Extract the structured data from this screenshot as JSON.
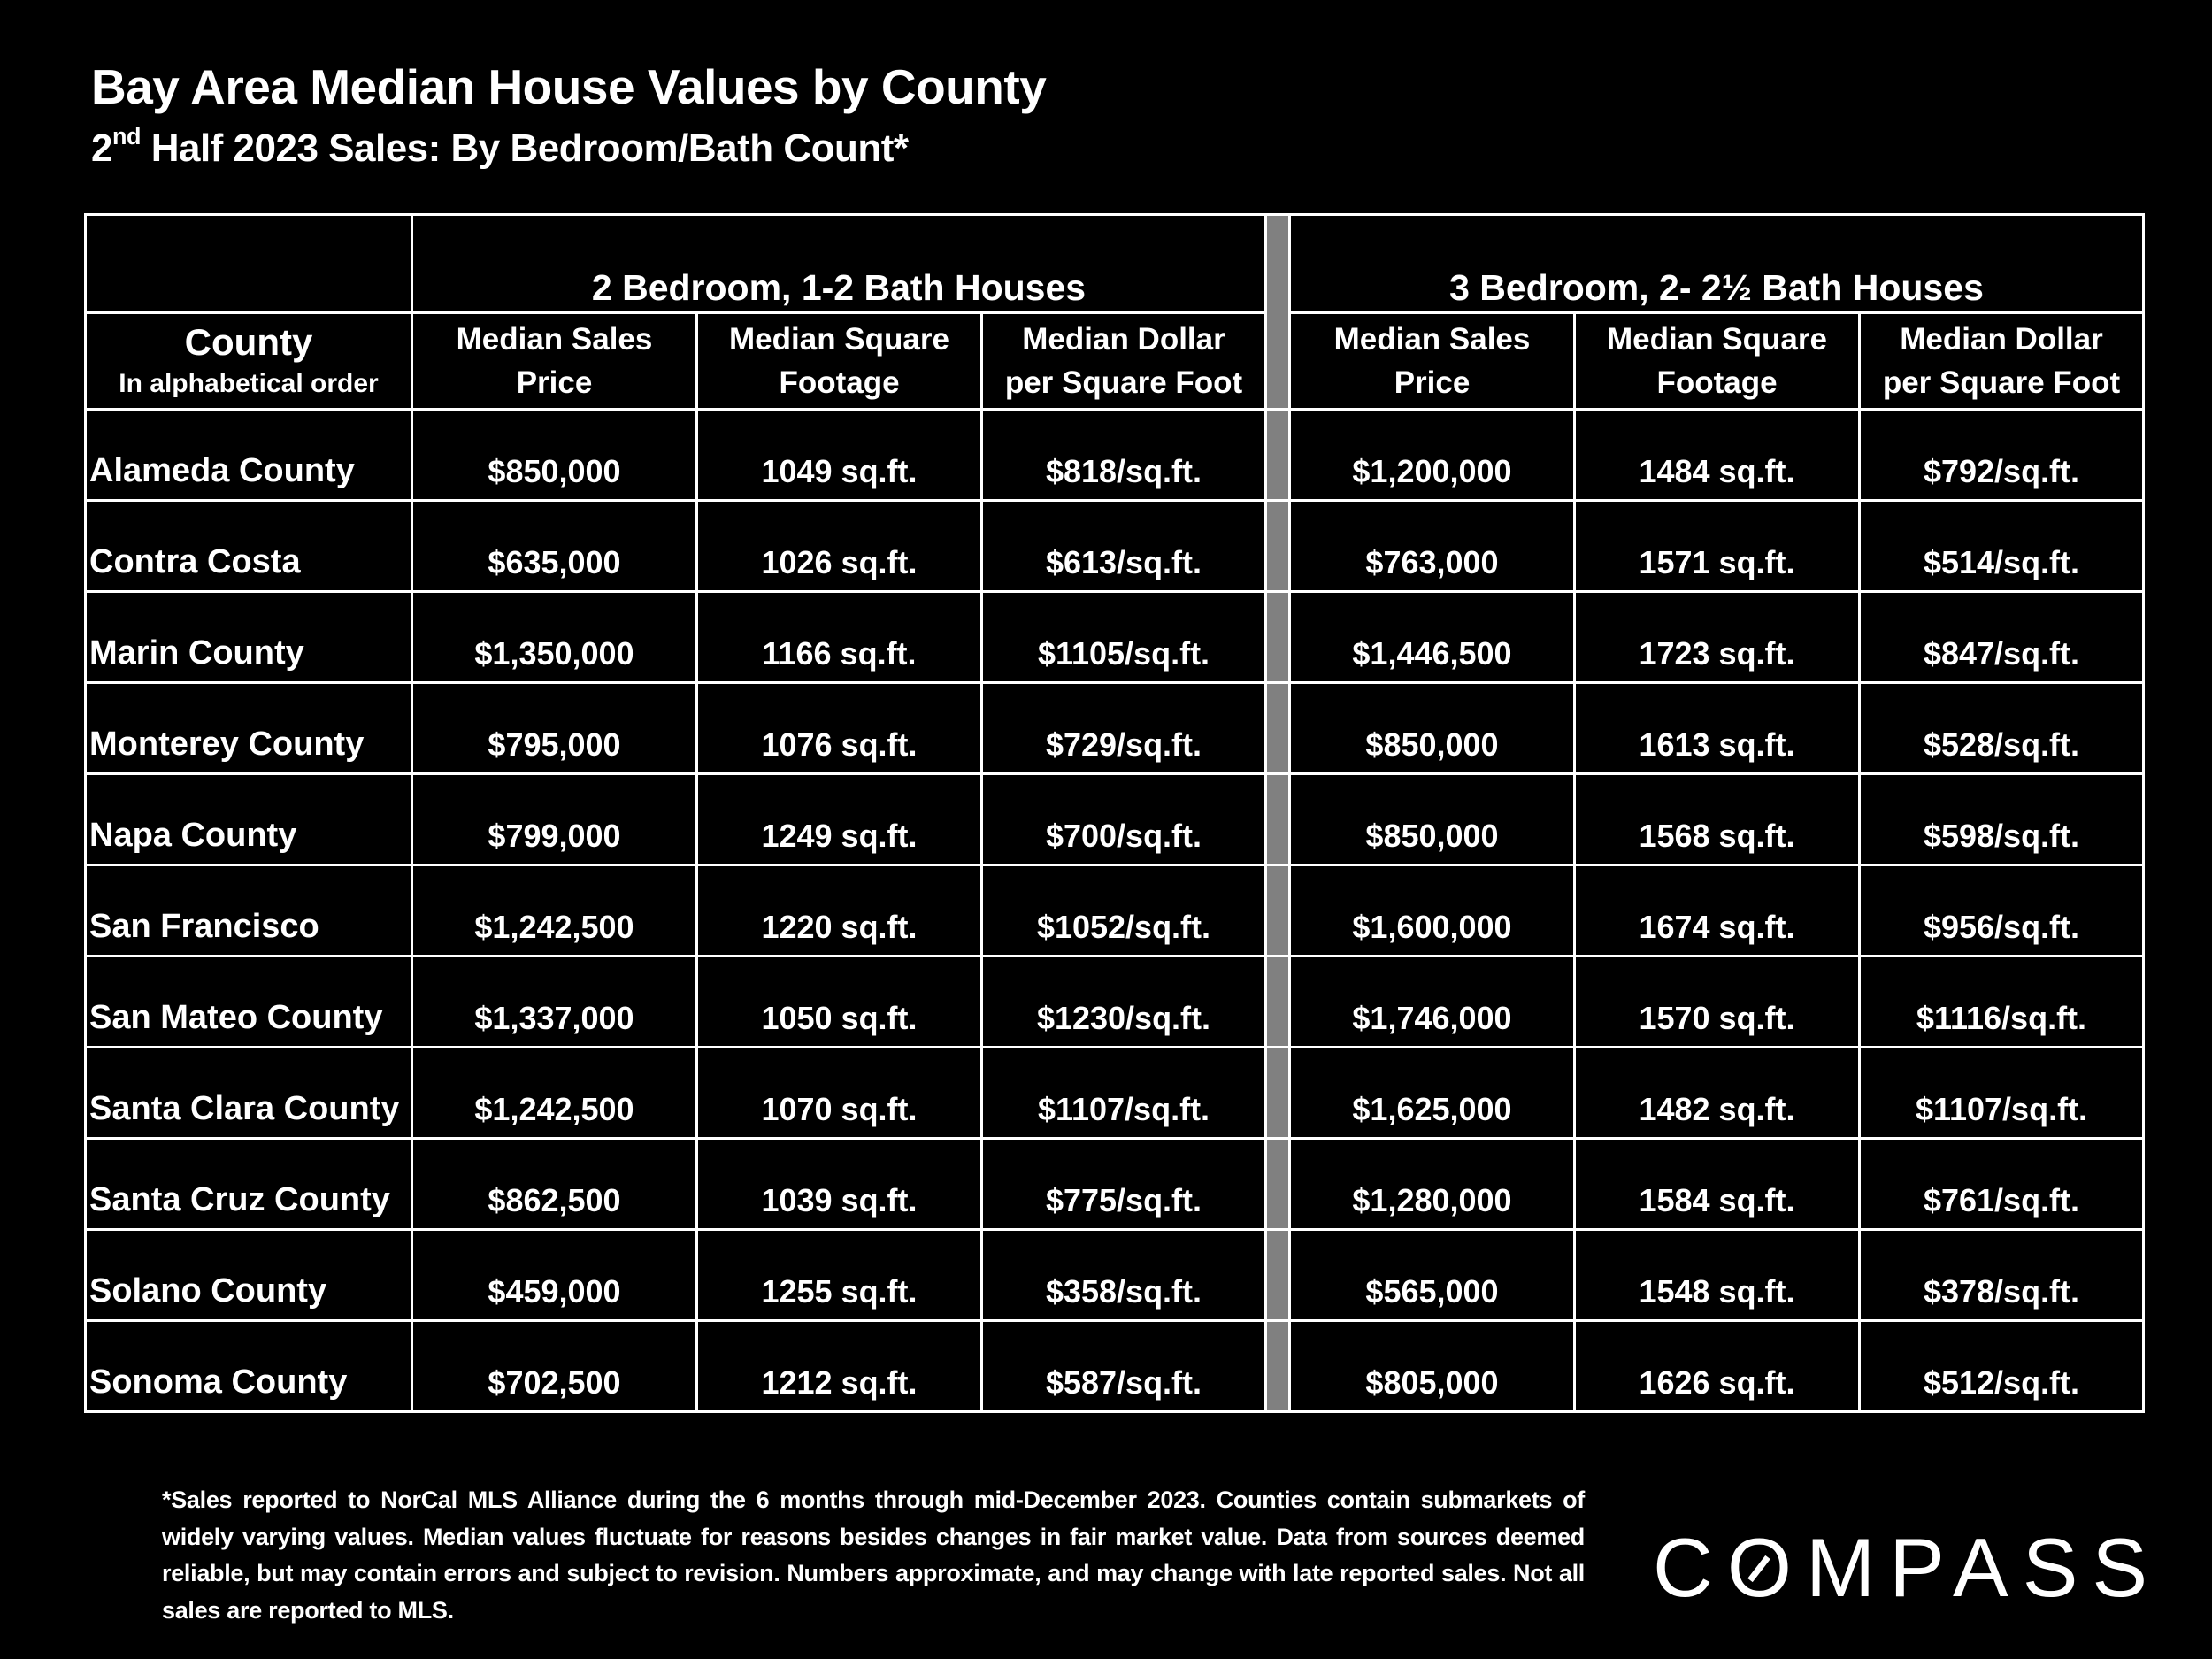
{
  "title": "Bay Area Median House Values by County",
  "subtitle": {
    "ordinal": "2",
    "sup": "nd",
    "rest": " Half 2023 Sales:  By Bedroom/Bath Count*"
  },
  "table": {
    "group_headers": [
      "2 Bedroom, 1-2 Bath Houses",
      "3 Bedroom, 2- 2½   Bath Houses"
    ],
    "county_header": {
      "label": "County",
      "sub": "In alphabetical order"
    },
    "column_headers": [
      [
        "Median Sales",
        "Price"
      ],
      [
        "Median Square",
        "Footage"
      ],
      [
        "Median Dollar",
        "per Square Foot"
      ],
      [
        "Median Sales",
        "Price"
      ],
      [
        "Median Square",
        "Footage"
      ],
      [
        "Median Dollar",
        "per Square Foot"
      ]
    ],
    "rows": [
      [
        "Alameda County",
        "$850,000",
        "1049 sq.ft.",
        "$818/sq.ft.",
        "$1,200,000",
        "1484 sq.ft.",
        "$792/sq.ft."
      ],
      [
        "Contra Costa",
        "$635,000",
        "1026 sq.ft.",
        "$613/sq.ft.",
        "$763,000",
        "1571 sq.ft.",
        "$514/sq.ft."
      ],
      [
        "Marin County",
        "$1,350,000",
        "1166 sq.ft.",
        "$1105/sq.ft.",
        "$1,446,500",
        "1723 sq.ft.",
        "$847/sq.ft."
      ],
      [
        "Monterey County",
        "$795,000",
        "1076 sq.ft.",
        "$729/sq.ft.",
        "$850,000",
        "1613 sq.ft.",
        "$528/sq.ft."
      ],
      [
        "Napa County",
        "$799,000",
        "1249 sq.ft.",
        "$700/sq.ft.",
        "$850,000",
        "1568 sq.ft.",
        "$598/sq.ft."
      ],
      [
        "San Francisco",
        "$1,242,500",
        "1220 sq.ft.",
        "$1052/sq.ft.",
        "$1,600,000",
        "1674 sq.ft.",
        "$956/sq.ft."
      ],
      [
        "San Mateo County",
        "$1,337,000",
        "1050 sq.ft.",
        "$1230/sq.ft.",
        "$1,746,000",
        "1570 sq.ft.",
        "$1116/sq.ft."
      ],
      [
        "Santa Clara County",
        "$1,242,500",
        "1070 sq.ft.",
        "$1107/sq.ft.",
        "$1,625,000",
        "1482 sq.ft.",
        "$1107/sq.ft."
      ],
      [
        "Santa Cruz County",
        "$862,500",
        "1039 sq.ft.",
        "$775/sq.ft.",
        "$1,280,000",
        "1584 sq.ft.",
        "$761/sq.ft."
      ],
      [
        "Solano County",
        "$459,000",
        "1255 sq.ft.",
        "$358/sq.ft.",
        "$565,000",
        "1548 sq.ft.",
        "$378/sq.ft."
      ],
      [
        "Sonoma County",
        "$702,500",
        "1212 sq.ft.",
        "$587/sq.ft.",
        "$805,000",
        "1626 sq.ft.",
        "$512/sq.ft."
      ]
    ]
  },
  "footnote": "*Sales reported to NorCal MLS Alliance during the 6 months through mid-December 2023. Counties contain submarkets of widely varying values. Median values fluctuate for reasons besides changes in fair market value. Data from sources deemed reliable, but may contain errors and subject to revision.  Numbers approximate, and may change with late reported sales. Not all sales are reported to MLS.",
  "brand": "COMPASS",
  "colors": {
    "background": "#000000",
    "text": "#ffffff",
    "divider": "#808080"
  }
}
